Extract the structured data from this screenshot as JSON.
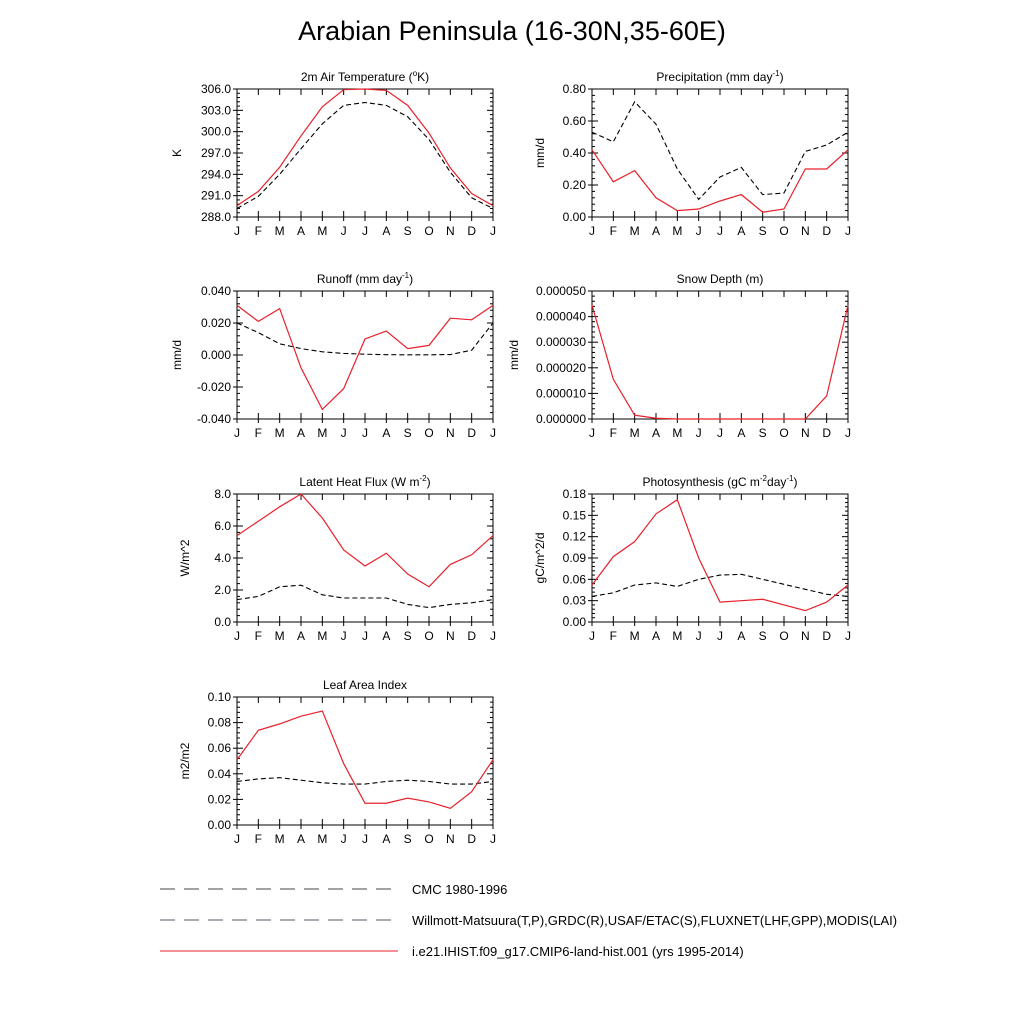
{
  "title": "Arabian Peninsula (16-30N,35-60E)",
  "colors": {
    "model": "#e8202a",
    "obs": "#000000"
  },
  "months": [
    "J",
    "F",
    "M",
    "A",
    "M",
    "J",
    "J",
    "A",
    "S",
    "O",
    "N",
    "D",
    "J"
  ],
  "legend": [
    {
      "label": "CMC 1980-1996",
      "style": "dash",
      "color": "#444444"
    },
    {
      "label": "Willmott-Matsuura(T,P),GRDC(R),USAF/ETAC(S),FLUXNET(LHF,GPP),MODIS(LAI)",
      "style": "dash",
      "color": "#555566"
    },
    {
      "label": "i.e21.IHIST.f09_g17.CMIP6-land-hist.001 (yrs 1995-2014)",
      "style": "solid",
      "color": "#e8202a"
    }
  ],
  "chart_data": [
    {
      "type": "line",
      "title_main": "2m Air Temperature (",
      "title_sup": "o",
      "title_tail": "K)",
      "ylabel": "K",
      "ylim": [
        288.0,
        306.0
      ],
      "yticks": [
        "288.0",
        "291.0",
        "294.0",
        "297.0",
        "300.0",
        "303.0",
        "306.0"
      ],
      "series": [
        {
          "values": [
            289.6,
            291.6,
            295.0,
            299.4,
            303.5,
            305.9,
            306.1,
            305.8,
            303.7,
            299.8,
            294.9,
            291.3,
            289.6
          ]
        },
        {
          "values": [
            289.2,
            290.9,
            294.0,
            297.6,
            301.1,
            303.7,
            304.1,
            303.7,
            302.1,
            298.9,
            294.3,
            290.7,
            289.2
          ]
        }
      ]
    },
    {
      "type": "line",
      "title_main": "Precipitation (mm day",
      "title_sup": "-1",
      "title_tail": ")",
      "ylabel": "mm/d",
      "ylim": [
        0.0,
        0.8
      ],
      "yticks": [
        "0.00",
        "0.20",
        "0.40",
        "0.60",
        "0.80"
      ],
      "series": [
        {
          "values": [
            0.42,
            0.22,
            0.29,
            0.12,
            0.04,
            0.05,
            0.1,
            0.14,
            0.03,
            0.05,
            0.3,
            0.3,
            0.42
          ]
        },
        {
          "values": [
            0.53,
            0.47,
            0.72,
            0.58,
            0.3,
            0.11,
            0.25,
            0.31,
            0.14,
            0.15,
            0.41,
            0.45,
            0.53
          ]
        }
      ]
    },
    {
      "type": "line",
      "title_main": "Runoff (mm day",
      "title_sup": "-1",
      "title_tail": ")",
      "ylabel": "mm/d",
      "ylim": [
        -0.04,
        0.04
      ],
      "yticks": [
        "-0.040",
        "-0.020",
        "0.000",
        "0.020",
        "0.040"
      ],
      "series": [
        {
          "values": [
            0.031,
            0.021,
            0.029,
            -0.008,
            -0.034,
            -0.021,
            0.01,
            0.015,
            0.004,
            0.006,
            0.023,
            0.022,
            0.031
          ]
        },
        {
          "values": [
            0.02,
            0.014,
            0.007,
            0.004,
            0.002,
            0.001,
            0.0005,
            0.0002,
            0.0001,
            0.0001,
            0.0003,
            0.003,
            0.02
          ]
        }
      ]
    },
    {
      "type": "line",
      "title_main": "Snow Depth (m)",
      "title_sup": "",
      "title_tail": "",
      "ylabel": "mm/d",
      "ylim": [
        0.0,
        5e-05
      ],
      "yticks": [
        "0.000000",
        "0.000010",
        "0.000020",
        "0.000030",
        "0.000040",
        "0.000050"
      ],
      "series": [
        {
          "values": [
            4.45e-05,
            1.55e-05,
            1.5e-06,
            3e-07,
            0.0,
            0.0,
            0.0,
            0.0,
            0.0,
            0.0,
            0.0,
            9e-06,
            4.45e-05
          ]
        },
        {
          "values": [
            0.0,
            0.0,
            0.0,
            0.0,
            0.0,
            0.0,
            0.0,
            0.0,
            0.0,
            0.0,
            0.0,
            0.0,
            0.0
          ]
        }
      ]
    },
    {
      "type": "line",
      "title_main": "Latent Heat Flux (W m",
      "title_sup": "-2",
      "title_tail": ")",
      "ylabel": "W/m^2",
      "ylim": [
        0.0,
        8.0
      ],
      "yticks": [
        "0.0",
        "2.0",
        "4.0",
        "6.0",
        "8.0"
      ],
      "series": [
        {
          "values": [
            5.4,
            6.3,
            7.2,
            8.0,
            6.5,
            4.5,
            3.5,
            4.3,
            3.0,
            2.2,
            3.6,
            4.2,
            5.4
          ]
        },
        {
          "values": [
            1.4,
            1.6,
            2.2,
            2.3,
            1.7,
            1.5,
            1.5,
            1.5,
            1.1,
            0.9,
            1.1,
            1.2,
            1.4
          ]
        }
      ]
    },
    {
      "type": "line",
      "title_main": "Photosynthesis (gC m",
      "title_sup": "-2",
      "title_tail": "day",
      "title_sup2": "-1",
      "title_tail2": ")",
      "ylabel": "gC/m^2/d",
      "ylim": [
        0.0,
        0.18
      ],
      "yticks": [
        "0.00",
        "0.03",
        "0.06",
        "0.09",
        "0.12",
        "0.15",
        "0.18"
      ],
      "series": [
        {
          "values": [
            0.052,
            0.092,
            0.113,
            0.152,
            0.172,
            0.09,
            0.028,
            0.03,
            0.032,
            0.024,
            0.016,
            0.028,
            0.052
          ]
        },
        {
          "values": [
            0.036,
            0.041,
            0.052,
            0.055,
            0.05,
            0.06,
            0.066,
            0.067,
            0.06,
            0.053,
            0.046,
            0.039,
            0.036
          ]
        }
      ]
    },
    {
      "type": "line",
      "title_main": "Leaf Area Index",
      "title_sup": "",
      "title_tail": "",
      "ylabel": "m2/m2",
      "ylim": [
        0.0,
        0.1
      ],
      "yticks": [
        "0.00",
        "0.02",
        "0.04",
        "0.06",
        "0.08",
        "0.10"
      ],
      "series": [
        {
          "values": [
            0.051,
            0.074,
            0.079,
            0.085,
            0.089,
            0.048,
            0.017,
            0.017,
            0.021,
            0.018,
            0.013,
            0.026,
            0.051
          ]
        },
        {
          "values": [
            0.034,
            0.036,
            0.037,
            0.035,
            0.033,
            0.032,
            0.032,
            0.034,
            0.035,
            0.034,
            0.032,
            0.032,
            0.034
          ]
        }
      ]
    }
  ]
}
